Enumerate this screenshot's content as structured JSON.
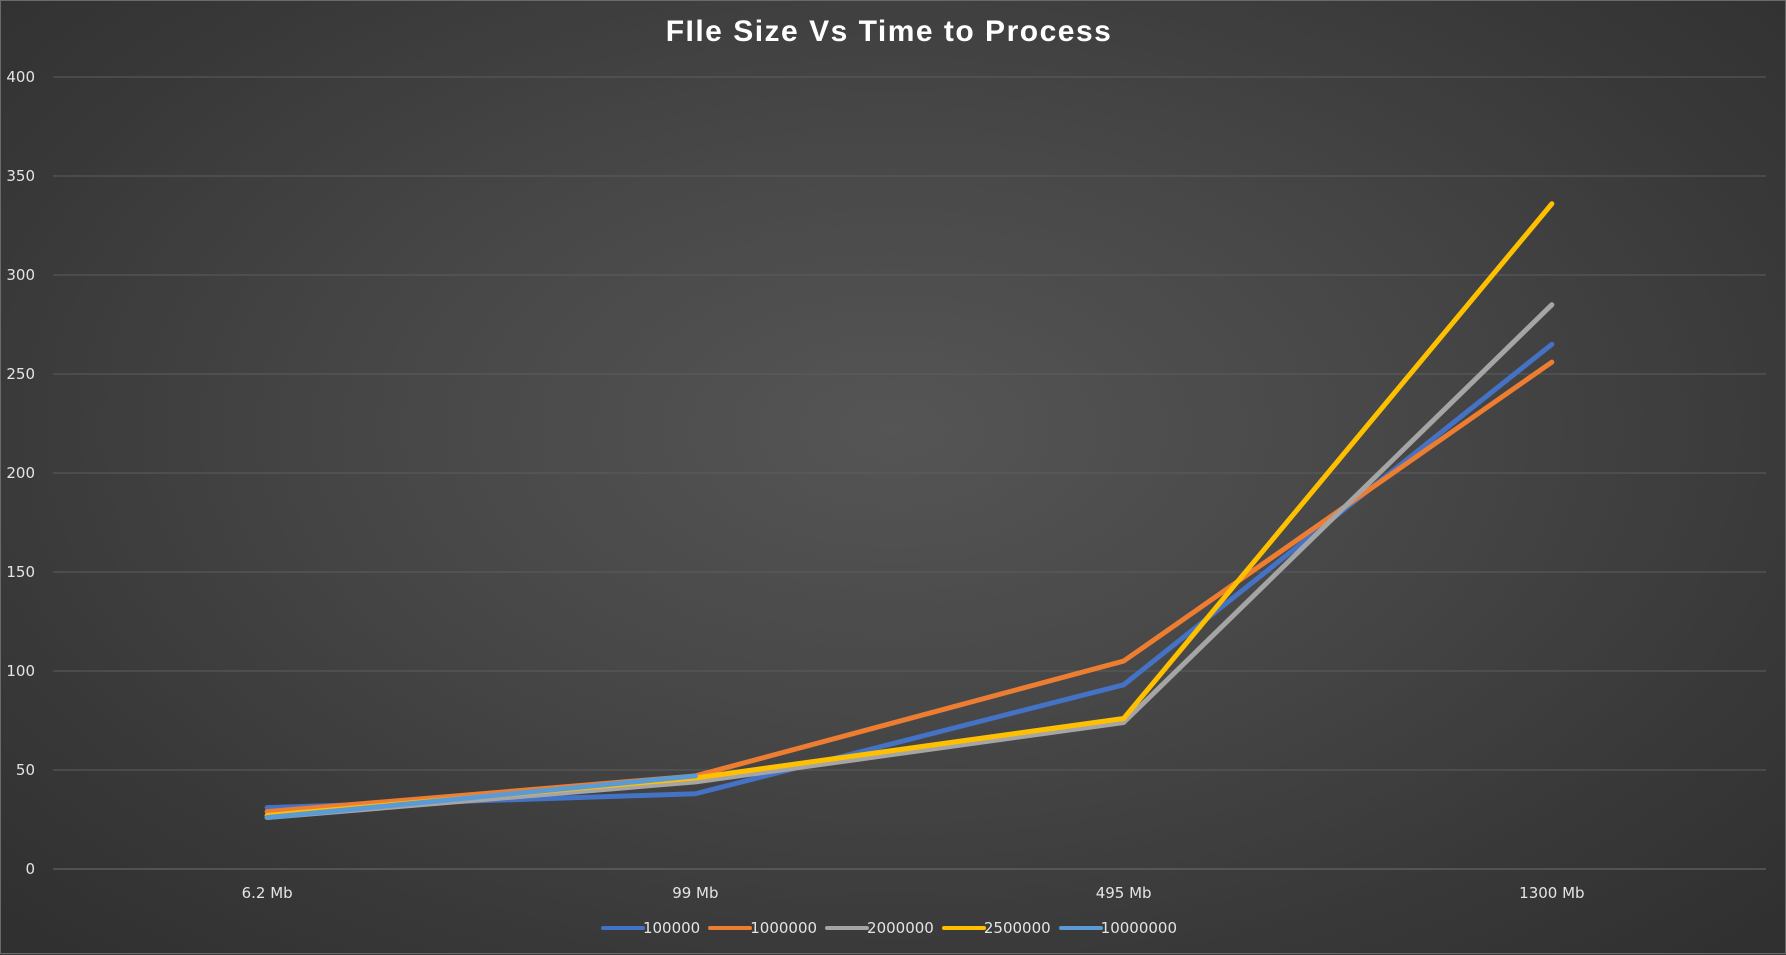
{
  "chart_data": {
    "type": "line",
    "title": "FIle Size Vs Time to Process",
    "categories": [
      "6.2 Mb",
      "99 Mb",
      "495 Mb",
      "1300 Mb"
    ],
    "ylim": [
      0,
      400
    ],
    "yticks": [
      0,
      50,
      100,
      150,
      200,
      250,
      300,
      350,
      400
    ],
    "grid": true,
    "legend_position": "bottom",
    "series": [
      {
        "name": "100000",
        "color": "#4472c4",
        "values": [
          31,
          38,
          93,
          265
        ]
      },
      {
        "name": "1000000",
        "color": "#ed7d31",
        "values": [
          29,
          47,
          105,
          256
        ]
      },
      {
        "name": "2000000",
        "color": "#a5a5a5",
        "values": [
          26,
          44,
          74,
          285
        ]
      },
      {
        "name": "2500000",
        "color": "#ffc000",
        "values": [
          27,
          46,
          76,
          336
        ]
      },
      {
        "name": "10000000",
        "color": "#5b9bd5",
        "values": [
          26,
          47,
          null,
          null
        ]
      }
    ]
  }
}
